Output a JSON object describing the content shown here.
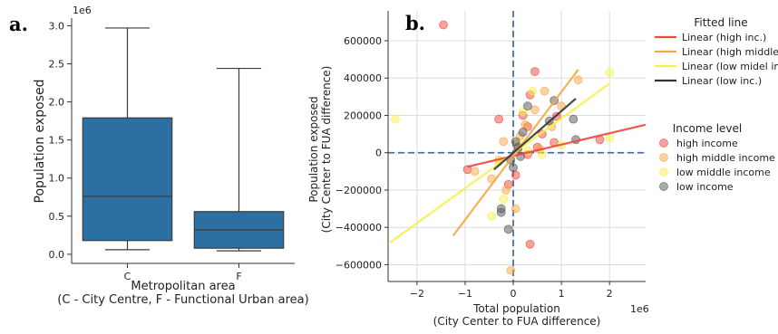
{
  "chart_data": [
    {
      "panel_label": "a.",
      "type": "box",
      "categories": [
        "C",
        "F"
      ],
      "boxes": [
        {
          "category": "C",
          "whisker_low": 60000,
          "q1": 180000,
          "median": 760000,
          "q3": 1790000,
          "whisker_high": 2970000
        },
        {
          "category": "F",
          "whisker_low": 45000,
          "q1": 80000,
          "median": 320000,
          "q3": 560000,
          "whisker_high": 2440000
        }
      ],
      "box_color": "#2b6fa3",
      "axis_scale_label": "1e6",
      "yticks": [
        0,
        500000,
        1000000,
        1500000,
        2000000,
        2500000,
        3000000
      ],
      "ytick_labels": [
        "0.0",
        "0.5",
        "1.0",
        "1.5",
        "2.0",
        "2.5",
        "3.0"
      ],
      "ylim": [
        -120000,
        3100000
      ],
      "ylabel": "Population exposed",
      "xlabel_line1": "Metropolitan area",
      "xlabel_line2": "(C - City Centre, F - Functional Urban area)"
    },
    {
      "panel_label": "b.",
      "type": "scatter",
      "xlim": [
        -2.6,
        2.75
      ],
      "ylim": [
        -690000,
        760000
      ],
      "xticks": [
        -2,
        -1,
        0,
        1,
        2
      ],
      "xtick_labels": [
        "−2",
        "−1",
        "0",
        "1",
        "2"
      ],
      "x_scale_label": "1e6",
      "yticks": [
        -600000,
        -400000,
        -200000,
        0,
        200000,
        400000,
        600000
      ],
      "ytick_labels": [
        "−600000",
        "−400000",
        "−200000",
        "0",
        "200000",
        "400000",
        "600000"
      ],
      "xlabel_line1": "Total population",
      "xlabel_line2": "(City Center to FUA difference)",
      "ylabel_line1": "Population exposed",
      "ylabel_line2": "(City Center to FUA difference)",
      "grid": true,
      "reference_lines": {
        "x": 0,
        "y": 0,
        "color": "#4a6fa5"
      },
      "fitted_lines": [
        {
          "name": "Linear (high inc.)",
          "color": "#f0453a",
          "x": [
            -0.95,
            2.75
          ],
          "y": [
            -75000,
            150000
          ]
        },
        {
          "name": "Linear (high middle i",
          "color": "#f5a742",
          "x": [
            -1.25,
            1.35
          ],
          "y": [
            -445000,
            445000
          ]
        },
        {
          "name": "Linear (low midel inc",
          "color": "#f8f04a",
          "x": [
            -2.55,
            2.0
          ],
          "y": [
            -480000,
            370000
          ]
        },
        {
          "name": "Linear (low inc.)",
          "color": "#333333",
          "x": [
            -0.4,
            1.3
          ],
          "y": [
            -90000,
            290000
          ]
        }
      ],
      "legend_fitted_title": "Fitted line",
      "legend_income_title": "Income level",
      "series": [
        {
          "name": "high income",
          "color": "#f0453a",
          "points": [
            [
              -1.45,
              685000
            ],
            [
              0.45,
              435000
            ],
            [
              0.35,
              310000
            ],
            [
              0.9,
              195000
            ],
            [
              0.2,
              200000
            ],
            [
              0.3,
              140000
            ],
            [
              0.6,
              100000
            ],
            [
              1.8,
              70000
            ],
            [
              0.85,
              55000
            ],
            [
              0.5,
              30000
            ],
            [
              0.1,
              20000
            ],
            [
              -0.95,
              -90000
            ],
            [
              -0.1,
              -170000
            ],
            [
              0.05,
              -120000
            ],
            [
              0.3,
              -10000
            ],
            [
              0.35,
              -490000
            ],
            [
              -0.3,
              180000
            ]
          ]
        },
        {
          "name": "high middle income",
          "color": "#f5a742",
          "points": [
            [
              0.65,
              330000
            ],
            [
              1.0,
              250000
            ],
            [
              0.45,
              230000
            ],
            [
              0.25,
              150000
            ],
            [
              0.15,
              90000
            ],
            [
              -0.2,
              60000
            ],
            [
              0.55,
              20000
            ],
            [
              -0.3,
              -40000
            ],
            [
              -0.8,
              -100000
            ],
            [
              -0.45,
              -140000
            ],
            [
              -0.15,
              -200000
            ],
            [
              0.05,
              -300000
            ],
            [
              -0.05,
              -630000
            ],
            [
              1.35,
              390000
            ],
            [
              0.8,
              140000
            ]
          ]
        },
        {
          "name": "low middle income",
          "color": "#f8f04a",
          "points": [
            [
              -2.45,
              180000
            ],
            [
              2.0,
              430000
            ],
            [
              2.0,
              80000
            ],
            [
              0.2,
              220000
            ],
            [
              0.4,
              330000
            ],
            [
              0.3,
              10000
            ],
            [
              -0.3,
              -50000
            ],
            [
              -0.45,
              -340000
            ],
            [
              -0.2,
              -250000
            ],
            [
              1.0,
              40000
            ],
            [
              0.6,
              -10000
            ],
            [
              0.1,
              50000
            ]
          ]
        },
        {
          "name": "low income",
          "color": "#555555",
          "points": [
            [
              0.85,
              280000
            ],
            [
              0.3,
              250000
            ],
            [
              1.25,
              180000
            ],
            [
              0.75,
              170000
            ],
            [
              0.2,
              110000
            ],
            [
              0.05,
              60000
            ],
            [
              0.1,
              30000
            ],
            [
              -0.05,
              -40000
            ],
            [
              0.0,
              -80000
            ],
            [
              -0.25,
              -300000
            ],
            [
              -0.25,
              -320000
            ],
            [
              -0.1,
              -410000
            ],
            [
              1.3,
              70000
            ],
            [
              0.15,
              -20000
            ]
          ]
        }
      ]
    }
  ]
}
